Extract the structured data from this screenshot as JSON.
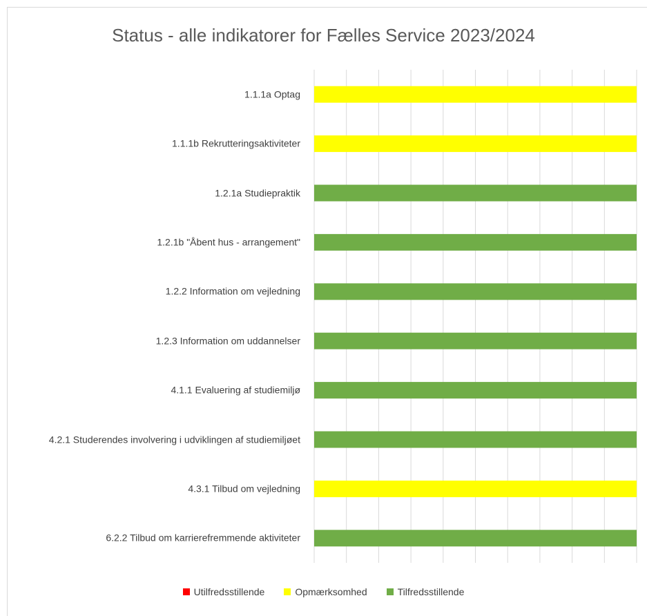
{
  "chart_data": {
    "type": "stacked_barh",
    "title": "Status - alle indikatorer for Fælles Service 2023/2024",
    "categories": [
      "1.1.1a Optag",
      "1.1.1b Rekrutteringsaktiviteter",
      "1.2.1a Studiepraktik",
      "1.2.1b \"Åbent hus - arrangement\"",
      "1.2.2 Information om vejledning",
      "1.2.3 Information om uddannelser",
      "4.1.1 Evaluering af studiemiljø",
      "4.2.1 Studerendes involvering i udviklingen af studiemiljøet",
      "4.3.1 Tilbud om vejledning",
      "6.2.2 Tilbud om karrierefremmende aktiviteter"
    ],
    "series": [
      {
        "name": "Utilfredsstillende",
        "color": "#ff0000",
        "values": [
          0,
          0,
          0,
          0,
          0,
          0,
          0,
          0,
          0,
          0
        ]
      },
      {
        "name": "Opmærksomhed",
        "color": "#ffff00",
        "values": [
          1,
          1,
          0,
          0,
          0,
          0,
          0,
          0,
          1,
          0
        ]
      },
      {
        "name": "Tilfredsstillende",
        "color": "#70ad47",
        "values": [
          0,
          0,
          1,
          1,
          1,
          1,
          1,
          1,
          0,
          1
        ]
      }
    ],
    "xlim": [
      0,
      1
    ],
    "xticks": [
      0,
      0.1,
      0.2,
      0.3,
      0.4,
      0.5,
      0.6,
      0.7,
      0.8,
      0.9,
      1
    ],
    "grid": true,
    "legend": "bottom"
  }
}
